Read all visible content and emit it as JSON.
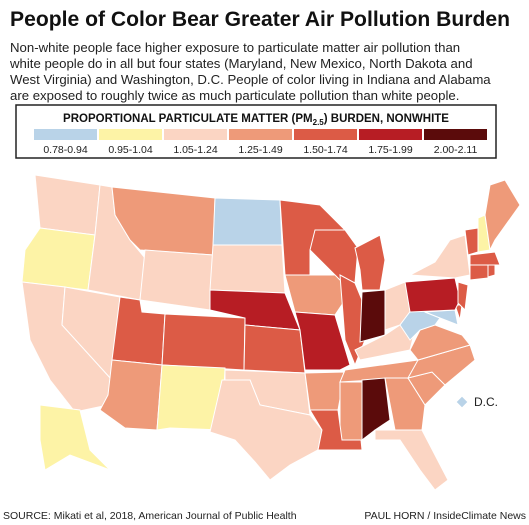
{
  "title": "People of Color Bear Greater Air Pollution Burden",
  "subtitle": [
    "Non-white people face higher exposure to particulate matter air pollution than",
    "white people do in all but four states (Maryland, New Mexico, North Dakota and",
    "West Virginia) and Washington, D.C. People of color living in Indiana and Alabama",
    "are exposed to roughly twice as much particulate pollution than white people."
  ],
  "legend": {
    "title": [
      "PROPORTIONAL PARTICULATE MATTER (PM",
      "2.5",
      ") BURDEN, NONWHITE"
    ],
    "bins": [
      {
        "label": "0.78-0.94",
        "color": "#b9d3e8"
      },
      {
        "label": "0.95-1.04",
        "color": "#fdf3a6"
      },
      {
        "label": "1.05-1.24",
        "color": "#fbd5c3"
      },
      {
        "label": "1.25-1.49",
        "color": "#ee9a79"
      },
      {
        "label": "1.50-1.74",
        "color": "#dc5b46"
      },
      {
        "label": "1.75-1.99",
        "color": "#b71d24"
      },
      {
        "label": "2.00-2.11",
        "color": "#5b0b0b"
      }
    ]
  },
  "dc_label": "D.C.",
  "source": "SOURCE: Mikati et al, 2018, American Journal of Public Health",
  "credit": "PAUL HORN / InsideClimate News"
}
